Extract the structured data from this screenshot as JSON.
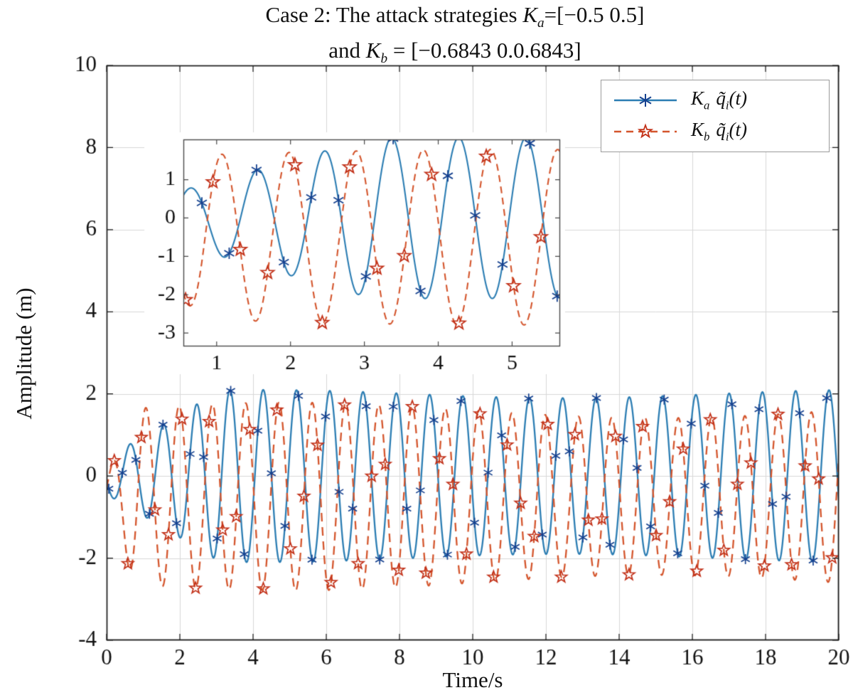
{
  "figure": {
    "background": "#ffffff"
  },
  "title": {
    "l1_pre": "Case 2: The attack strategies ",
    "l1_k": "K",
    "l1_sub": "a",
    "l1_post": "=[−0.5 0.5]",
    "l2_pre": "and ",
    "l2_k": "K",
    "l2_sub": "b",
    "l2_post": " = [−0.6843 0.0.6843]"
  },
  "axes": {
    "x_label": "Time/s",
    "y_label": "Amplitude (m)"
  },
  "legend": {
    "items": [
      {
        "k": "K",
        "ksub": "a",
        "q": "q̃",
        "qsub": "i",
        "tail": "(t)"
      },
      {
        "k": "K",
        "ksub": "b",
        "q": "q̃",
        "qsub": "i",
        "tail": "(t)"
      }
    ]
  },
  "chart_data": {
    "type": "line",
    "title": "Case 2: The attack strategies Ka=[−0.5 0.5] and Kb = [−0.6843 0.0.6843]",
    "xlabel": "Time/s",
    "ylabel": "Amplitude (m)",
    "xlim": [
      0,
      20
    ],
    "ylim": [
      -4,
      10
    ],
    "x_ticks": [
      0,
      2,
      4,
      6,
      8,
      10,
      12,
      14,
      16,
      18,
      20
    ],
    "y_ticks": [
      -4,
      -2,
      0,
      2,
      4,
      6,
      8,
      10
    ],
    "grid": true,
    "grid_color": "#d7d7d7",
    "legend_position": "top-right",
    "series": [
      {
        "name": "Ka q̃i(t)",
        "legend_label": "K_a q̃_i(t)",
        "color": "#2b7db3",
        "marker": "asterisk",
        "marker_color": "#15418f",
        "dash": null,
        "marker_dt": 0.37,
        "marker_t0": 0.06,
        "model": {
          "offset": 0,
          "amp_max": 2.0,
          "amp0": 0.45,
          "amp_rate": 0.5,
          "freq": 1.1,
          "phase": -2.86,
          "am_depth": 0.05,
          "am_freq": 0.06
        }
      },
      {
        "name": "Kb q̃i(t)",
        "legend_label": "K_b q̃_i(t)",
        "color": "#d4552c",
        "marker": "pentagram",
        "marker_color": "#c23018",
        "dash": [
          12,
          8
        ],
        "marker_dt": 0.37,
        "marker_t0": 0.21,
        "model": {
          "offset": -0.5,
          "amp_max": 2.1,
          "amp0": 0.5,
          "amp_rate": 2.0,
          "freq": 1.1,
          "phase": 0.45,
          "am_depth": 0.09,
          "am_freq": 0.05
        }
      }
    ],
    "inset": {
      "xlim": [
        0.55,
        5.65
      ],
      "ylim": [
        -3.35,
        2.05
      ],
      "x_ticks": [
        1,
        2,
        3,
        4,
        5
      ],
      "y_ticks": [
        1,
        0,
        -1,
        -2,
        -3
      ],
      "grid": false
    }
  }
}
